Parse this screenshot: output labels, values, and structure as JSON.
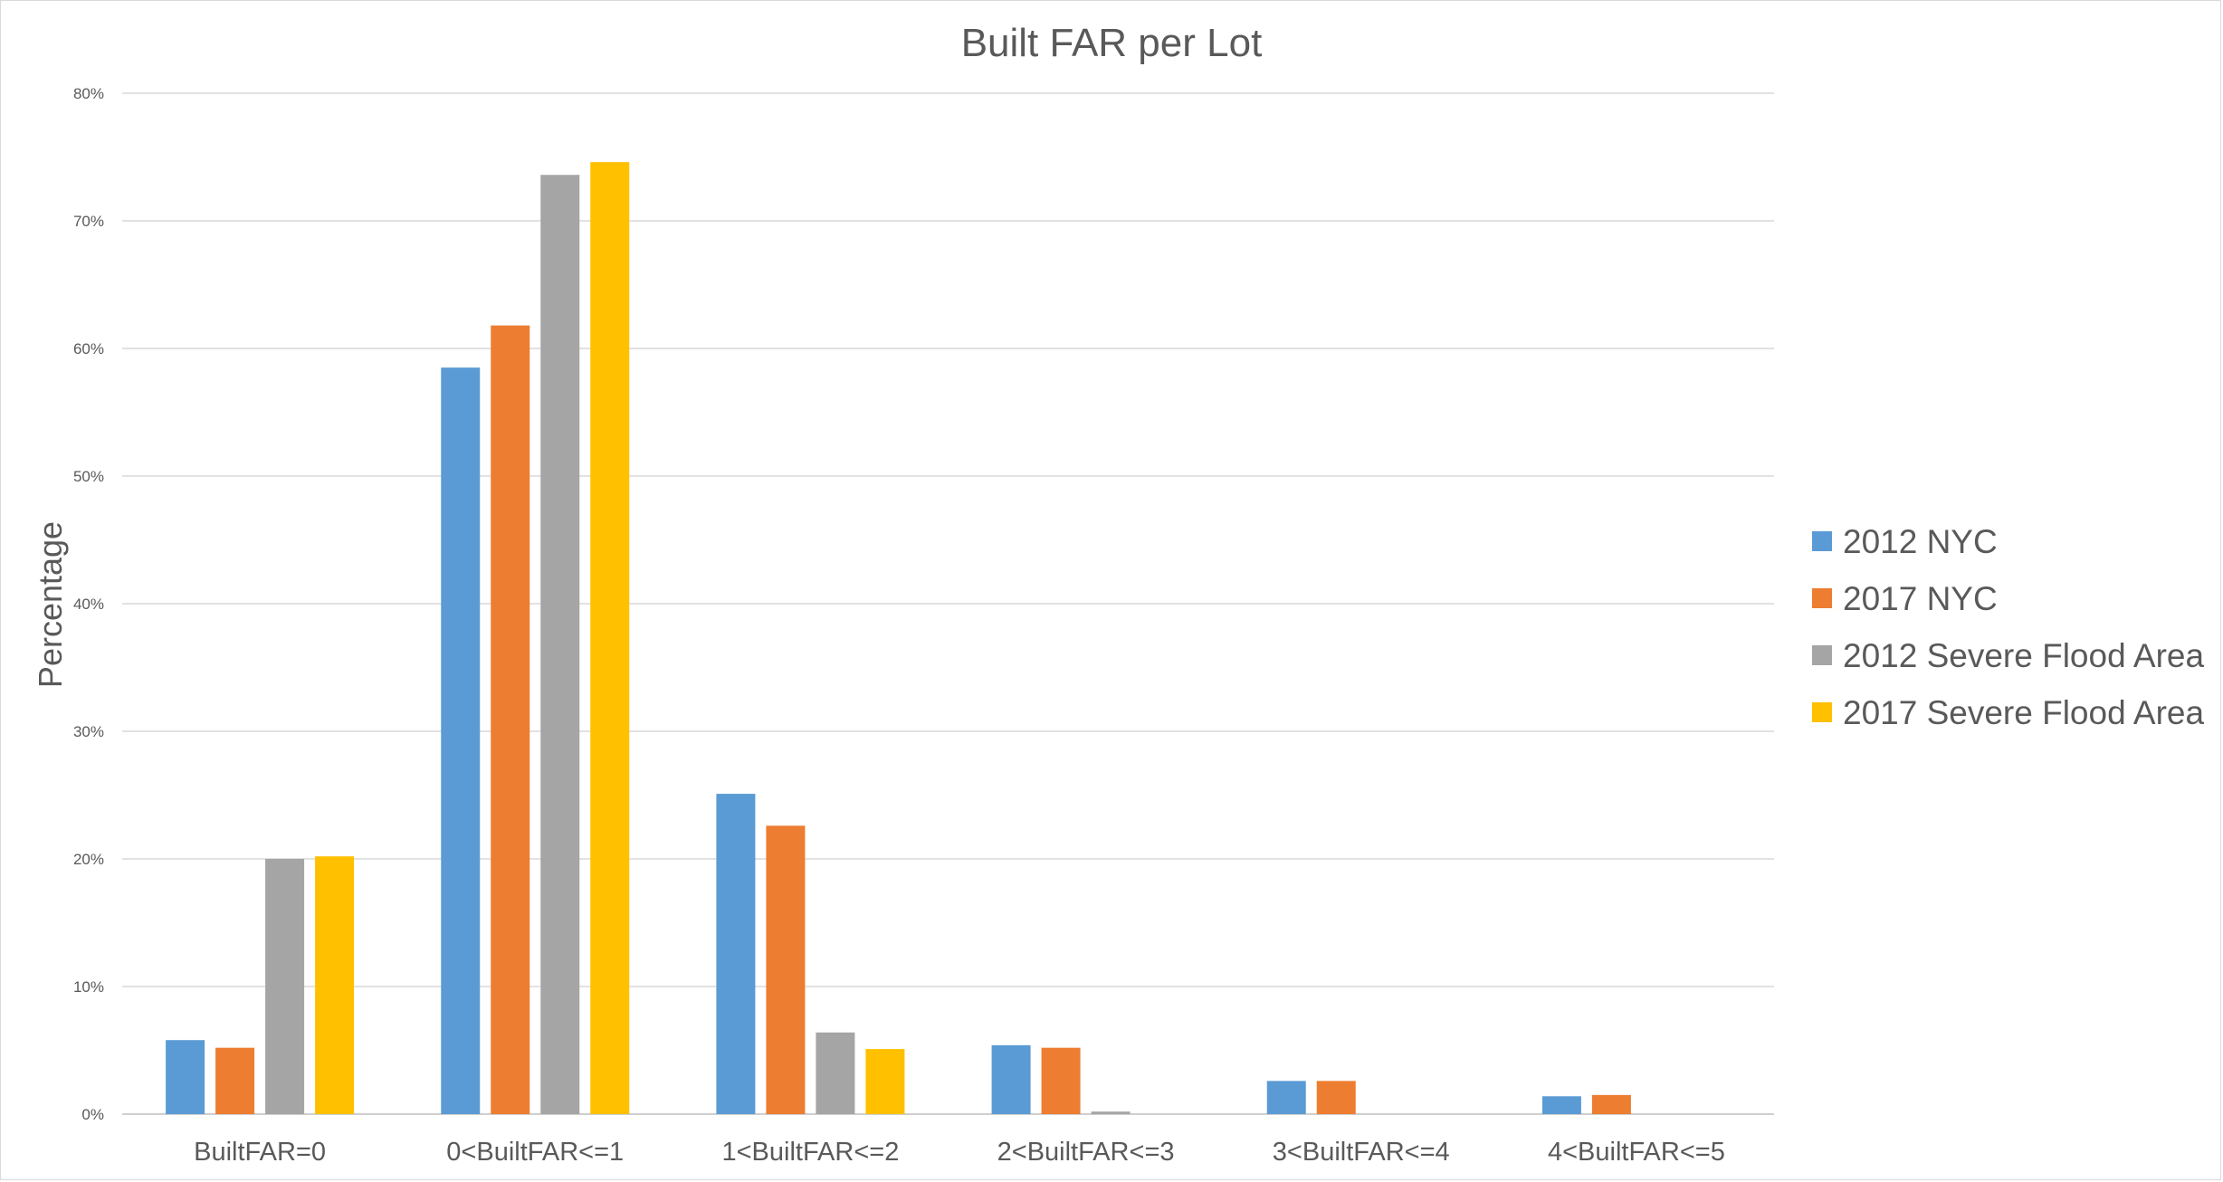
{
  "chart_data": {
    "type": "bar",
    "title": "Built FAR per Lot",
    "xlabel": "",
    "ylabel": "Percentage",
    "ylim": [
      0,
      80
    ],
    "yticks": [
      0,
      10,
      20,
      30,
      40,
      50,
      60,
      70,
      80
    ],
    "ytick_labels": [
      "0%",
      "10%",
      "20%",
      "30%",
      "40%",
      "50%",
      "60%",
      "70%",
      "80%"
    ],
    "categories": [
      "BuiltFAR=0",
      "0<BuiltFAR<=1",
      "1<BuiltFAR<=2",
      "2<BuiltFAR<=3",
      "3<BuiltFAR<=4",
      "4<BuiltFAR<=5"
    ],
    "grid": true,
    "legend_position": "right",
    "series": [
      {
        "name": "2012 NYC",
        "color": "#5b9bd5",
        "values": [
          5.8,
          58.5,
          25.1,
          5.4,
          2.6,
          1.4
        ]
      },
      {
        "name": "2017 NYC",
        "color": "#ed7d31",
        "values": [
          5.2,
          61.8,
          22.6,
          5.2,
          2.6,
          1.5
        ]
      },
      {
        "name": "2012 Severe Flood Area",
        "color": "#a5a5a5",
        "values": [
          20.0,
          73.6,
          6.4,
          0.2,
          0.0,
          0.0
        ]
      },
      {
        "name": "2017 Severe Flood Area",
        "color": "#ffc000",
        "values": [
          20.2,
          74.6,
          5.1,
          0.0,
          0.0,
          0.0
        ]
      }
    ]
  }
}
